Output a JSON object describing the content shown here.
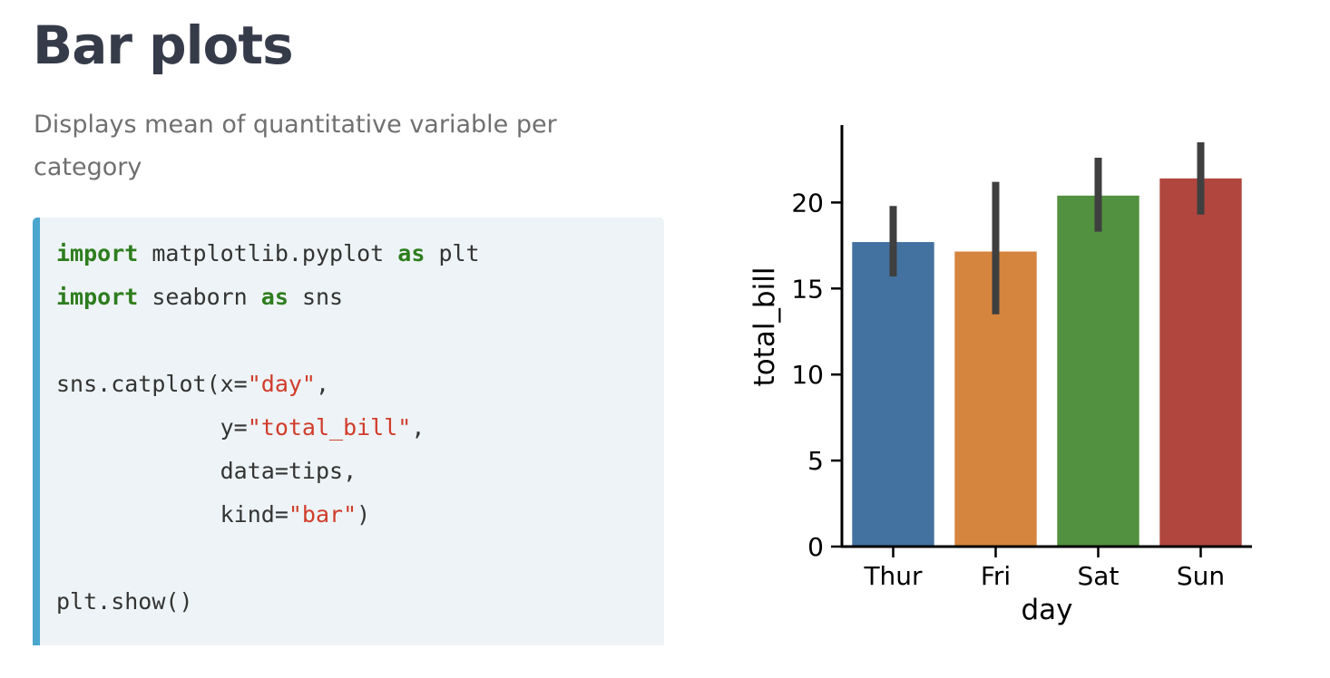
{
  "page": {
    "title": "Bar plots",
    "subtitle": "Displays mean of quantitative variable per category"
  },
  "code": {
    "line1": {
      "kw1": "import",
      "mid": " matplotlib.pyplot ",
      "kw2": "as",
      "tail": " plt"
    },
    "line2": {
      "kw1": "import",
      "mid": " seaborn ",
      "kw2": "as",
      "tail": " sns"
    },
    "line3": {
      "pre": "sns.catplot(x=",
      "str": "\"day\"",
      "post": ","
    },
    "line4": {
      "pre": "            y=",
      "str": "\"total_bill\"",
      "post": ","
    },
    "line5": {
      "text": "            data=tips,"
    },
    "line6": {
      "pre": "            kind=",
      "str": "\"bar\"",
      "post": ")"
    },
    "line7": {
      "text": "plt.show()"
    },
    "colors": {
      "keyword": "#2e7d1e",
      "string": "#d13c2b",
      "accent_bar": "#4aa6cc",
      "background": "#edf3f6"
    }
  },
  "chart_data": {
    "type": "bar",
    "categories": [
      "Thur",
      "Fri",
      "Sat",
      "Sun"
    ],
    "values": [
      17.7,
      17.15,
      20.4,
      21.4
    ],
    "error_low": [
      15.7,
      13.5,
      18.3,
      19.3
    ],
    "error_high": [
      19.8,
      21.2,
      22.6,
      23.5
    ],
    "colors": [
      "#4472a0",
      "#d6853e",
      "#52913f",
      "#b1463f"
    ],
    "error_color": "#3f3f3f",
    "xlabel": "day",
    "ylabel": "total_bill",
    "ylim": [
      0,
      24.5
    ],
    "yticks": [
      0,
      5,
      10,
      15,
      20
    ],
    "grid": false
  }
}
